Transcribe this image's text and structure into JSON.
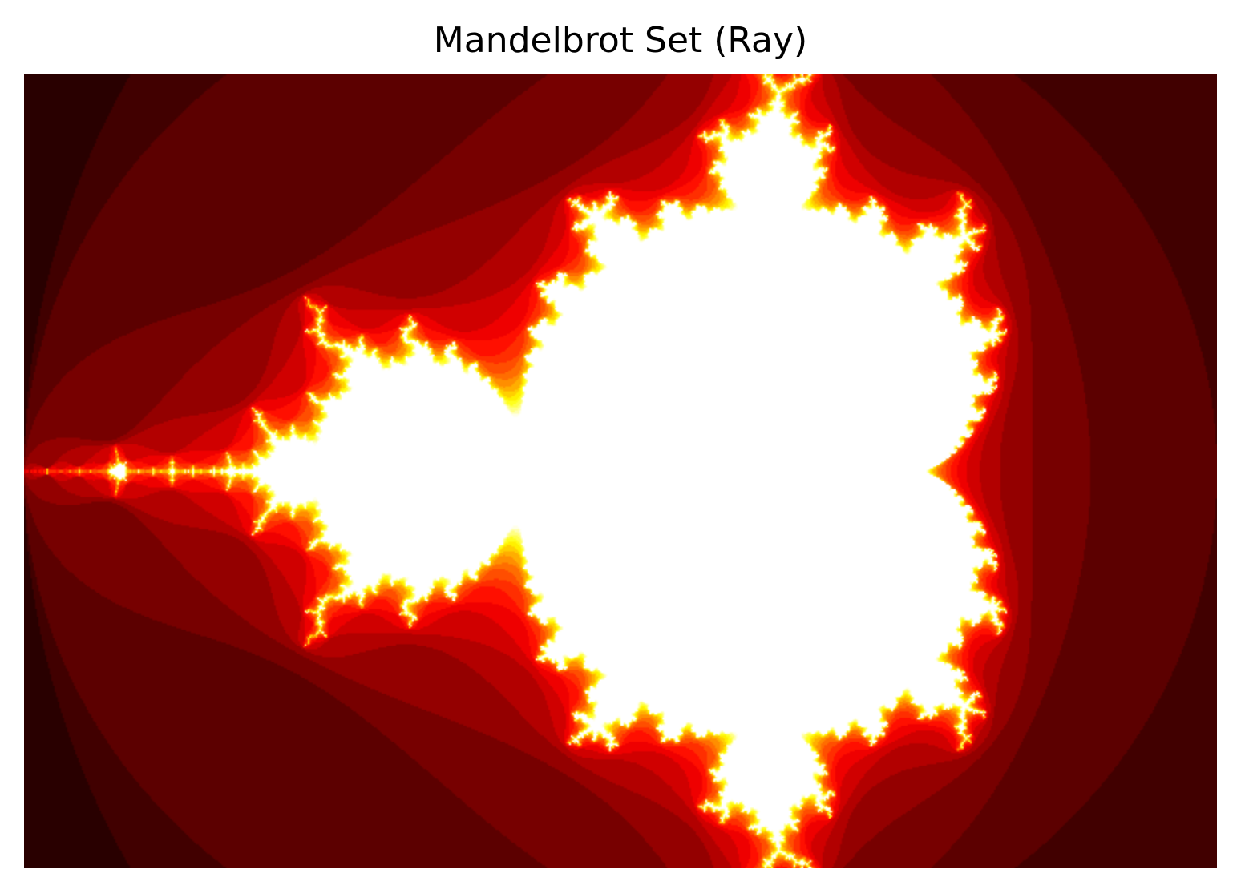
{
  "figure": {
    "title": "Mandelbrot Set (Ray)"
  },
  "image": {
    "subject": "mandelbrot-set",
    "colormap": "hot",
    "colors": {
      "background": "#ffffff",
      "outside": "#070000",
      "inside": "#ffffff"
    },
    "complex_region": {
      "re_min": -2.0,
      "re_max": 1.0,
      "im_min": -1.0,
      "im_max": 1.0
    }
  }
}
